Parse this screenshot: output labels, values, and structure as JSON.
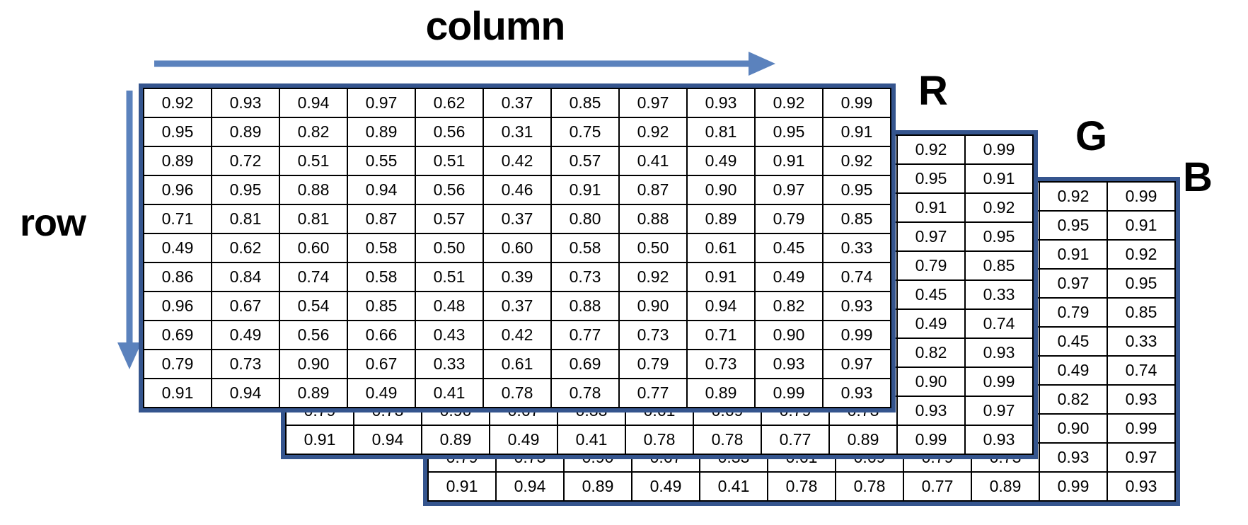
{
  "labels": {
    "column": "column",
    "row": "row"
  },
  "channels": [
    {
      "label": "R"
    },
    {
      "label": "G"
    },
    {
      "label": "B"
    }
  ],
  "matrix_values": [
    [
      "0.92",
      "0.93",
      "0.94",
      "0.97",
      "0.62",
      "0.37",
      "0.85",
      "0.97",
      "0.93",
      "0.92",
      "0.99"
    ],
    [
      "0.95",
      "0.89",
      "0.82",
      "0.89",
      "0.56",
      "0.31",
      "0.75",
      "0.92",
      "0.81",
      "0.95",
      "0.91"
    ],
    [
      "0.89",
      "0.72",
      "0.51",
      "0.55",
      "0.51",
      "0.42",
      "0.57",
      "0.41",
      "0.49",
      "0.91",
      "0.92"
    ],
    [
      "0.96",
      "0.95",
      "0.88",
      "0.94",
      "0.56",
      "0.46",
      "0.91",
      "0.87",
      "0.90",
      "0.97",
      "0.95"
    ],
    [
      "0.71",
      "0.81",
      "0.81",
      "0.87",
      "0.57",
      "0.37",
      "0.80",
      "0.88",
      "0.89",
      "0.79",
      "0.85"
    ],
    [
      "0.49",
      "0.62",
      "0.60",
      "0.58",
      "0.50",
      "0.60",
      "0.58",
      "0.50",
      "0.61",
      "0.45",
      "0.33"
    ],
    [
      "0.86",
      "0.84",
      "0.74",
      "0.58",
      "0.51",
      "0.39",
      "0.73",
      "0.92",
      "0.91",
      "0.49",
      "0.74"
    ],
    [
      "0.96",
      "0.67",
      "0.54",
      "0.85",
      "0.48",
      "0.37",
      "0.88",
      "0.90",
      "0.94",
      "0.82",
      "0.93"
    ],
    [
      "0.69",
      "0.49",
      "0.56",
      "0.66",
      "0.43",
      "0.42",
      "0.77",
      "0.73",
      "0.71",
      "0.90",
      "0.99"
    ],
    [
      "0.79",
      "0.73",
      "0.90",
      "0.67",
      "0.33",
      "0.61",
      "0.69",
      "0.79",
      "0.73",
      "0.93",
      "0.97"
    ],
    [
      "0.91",
      "0.94",
      "0.89",
      "0.49",
      "0.41",
      "0.78",
      "0.78",
      "0.77",
      "0.89",
      "0.99",
      "0.93"
    ]
  ],
  "colors": {
    "arrow_blue": "#5b82bd",
    "matrix_border_blue": "#35558e",
    "cell_border": "#000000",
    "cell_background": "#ffffff",
    "text": "#000000"
  }
}
